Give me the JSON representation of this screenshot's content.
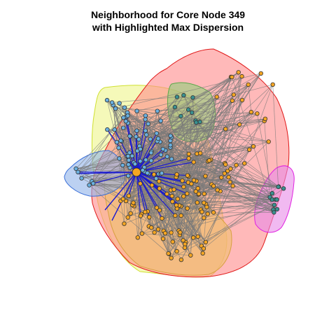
{
  "title_line1": "Neighborhood for Core Node 349",
  "title_line2": "with Highlighted Max Dispersion",
  "colors": {
    "hull_red_fill": "#ff8a8a",
    "hull_red_stroke": "#e01818",
    "hull_yellow_fill": "#eef58a",
    "hull_yellow_stroke": "#cfe030",
    "hull_green_fill": "#8fcf7a",
    "hull_green_stroke": "#5aa84a",
    "hull_blue_fill": "#8fb2ea",
    "hull_blue_stroke": "#3a6fd8",
    "hull_orange_fill": "#f0c070",
    "hull_magenta_fill": "#e88ae8",
    "hull_magenta_stroke": "#e020e0",
    "edge_gray": "#7a7a7a",
    "edge_highlight": "#1a1ad0",
    "node_orange": "#f5a623",
    "node_blue": "#6ab0e0",
    "node_teal": "#3a9090",
    "node_border": "#333333",
    "core_node_fill": "#f5a623"
  }
}
